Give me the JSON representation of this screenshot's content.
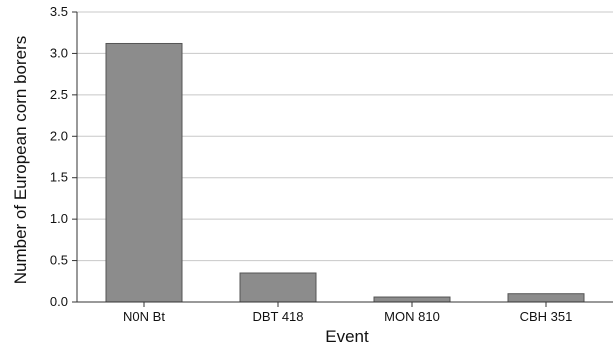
{
  "chart_data": {
    "type": "bar",
    "title": "",
    "xlabel": "Event",
    "ylabel": "Number of European corn borers",
    "categories": [
      "N0N Bt",
      "DBT 418",
      "MON 810",
      "CBH 351"
    ],
    "values": [
      3.12,
      0.35,
      0.06,
      0.1
    ],
    "ylim": [
      0,
      3.5
    ],
    "yticks": [
      "0.0",
      "0.5",
      "1.0",
      "1.5",
      "2.0",
      "2.5",
      "3.0",
      "3.5"
    ],
    "grid": true,
    "legend": "none",
    "colors": {
      "bar": "#8c8c8c",
      "bar_edge": "#555555",
      "grid": "#c8c8c8",
      "axis": "#333333"
    }
  }
}
